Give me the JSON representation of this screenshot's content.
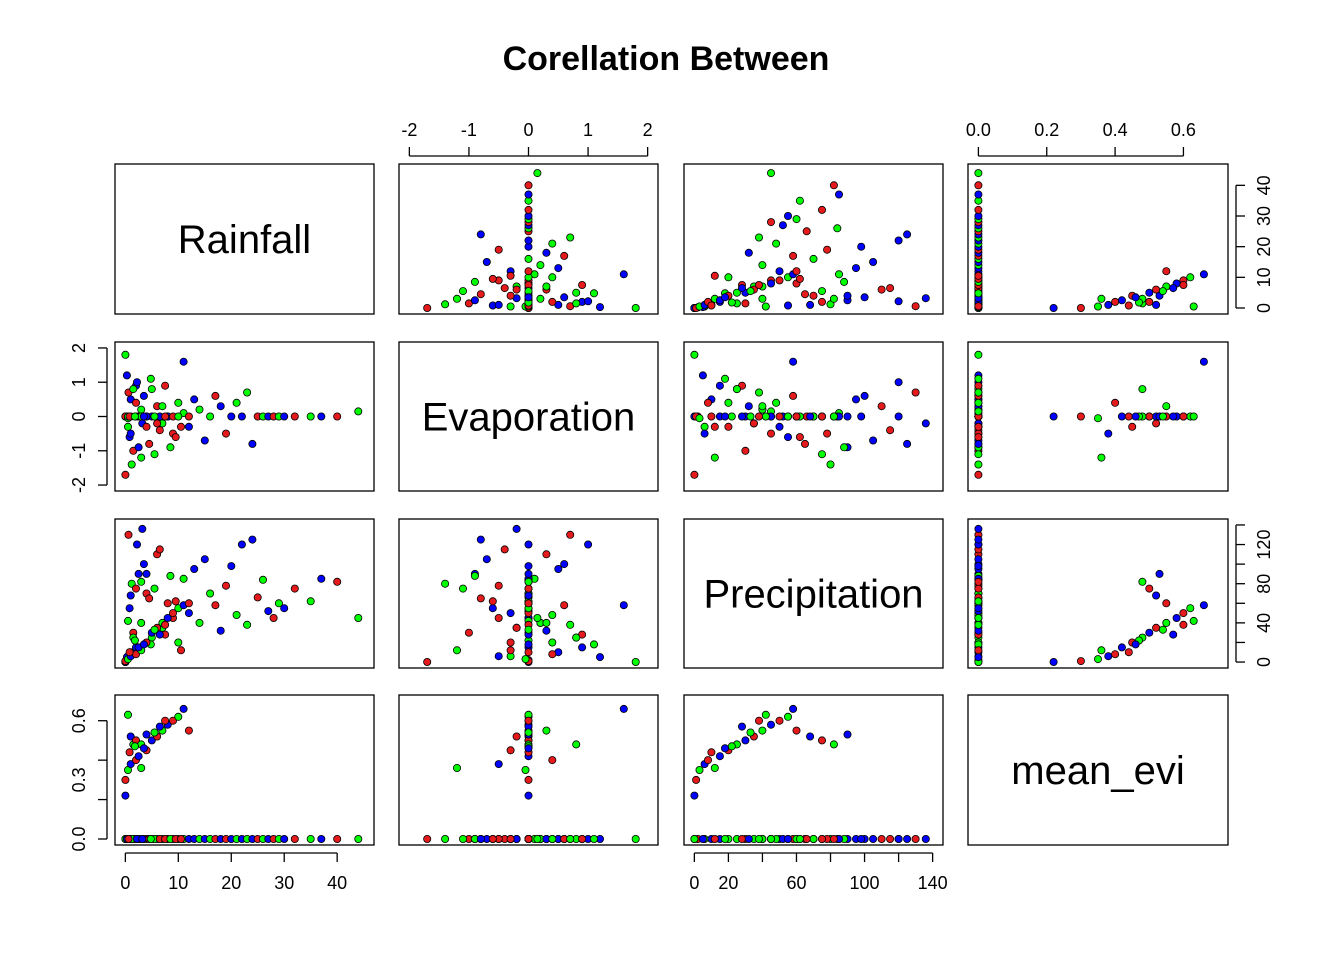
{
  "chart_data": {
    "type": "scatter",
    "title": "Corellation Between",
    "variables": [
      {
        "name": "Rainfall",
        "range": [
          0,
          45
        ],
        "ticks": [
          0,
          10,
          20,
          30,
          40
        ]
      },
      {
        "name": "Evaporation",
        "range": [
          -2,
          2
        ],
        "ticks": [
          -2,
          -1,
          0,
          1,
          2
        ]
      },
      {
        "name": "Precipitation",
        "range": [
          0,
          140
        ],
        "ticks": [
          0,
          20,
          40,
          60,
          80,
          100,
          120,
          140
        ]
      },
      {
        "name": "mean_evi",
        "range": [
          0,
          0.7
        ],
        "ticks": [
          0.0,
          0.2,
          0.4,
          0.6
        ]
      }
    ],
    "tick_labels": {
      "bottom": {
        "Rainfall": [
          "0",
          "10",
          "20",
          "30",
          "40"
        ],
        "Precipitation": [
          "0",
          "20",
          "60",
          "100",
          "140"
        ]
      },
      "top": {
        "Evaporation": [
          "-2",
          "-1",
          "0",
          "1",
          "2"
        ],
        "mean_evi": [
          "0.0",
          "0.2",
          "0.4",
          "0.6"
        ]
      },
      "left": {
        "Evaporation": [
          "-2",
          "-1",
          "0",
          "1",
          "2"
        ],
        "mean_evi": [
          "0.0",
          "0.3",
          "0.6"
        ]
      },
      "right": {
        "Rainfall": [
          "0",
          "10",
          "20",
          "30",
          "40"
        ],
        "Precipitation": [
          "0",
          "40",
          "80",
          "120"
        ]
      }
    },
    "point_colors": [
      "#e41a1c",
      "#00ff00",
      "#0000ff"
    ],
    "grid": false,
    "legend": "none",
    "points": [
      [
        0.2,
        0.0,
        2.0,
        0.0
      ],
      [
        0.5,
        -0.3,
        6.0,
        0.0
      ],
      [
        1.0,
        0.5,
        10.0,
        0.0
      ],
      [
        0.0,
        -1.7,
        0.0,
        0.0
      ],
      [
        0.0,
        1.8,
        0.0,
        0.0
      ],
      [
        2.0,
        0.9,
        15.0,
        0.0
      ],
      [
        1.5,
        -1.0,
        30.0,
        0.0
      ],
      [
        3.0,
        0.2,
        40.0,
        0.0
      ],
      [
        0.8,
        -0.6,
        55.0,
        0.0
      ],
      [
        4.0,
        0.0,
        70.0,
        0.0
      ],
      [
        5.0,
        0.8,
        25.0,
        0.0
      ],
      [
        2.5,
        -0.9,
        90.0,
        0.0
      ],
      [
        6.0,
        0.3,
        110.0,
        0.0
      ],
      [
        7.0,
        -0.2,
        35.0,
        0.0
      ],
      [
        0.3,
        1.2,
        5.0,
        0.0
      ],
      [
        8.0,
        0.0,
        60.0,
        0.0
      ],
      [
        1.2,
        -1.4,
        80.0,
        0.0
      ],
      [
        3.5,
        0.6,
        100.0,
        0.0
      ],
      [
        9.0,
        -0.5,
        45.0,
        0.0
      ],
      [
        10.0,
        0.4,
        20.0,
        0.0
      ],
      [
        2.2,
        1.0,
        120.0,
        0.0
      ],
      [
        4.5,
        -0.8,
        65.0,
        0.0
      ],
      [
        11.0,
        0.1,
        85.0,
        0.0
      ],
      [
        12.0,
        -0.3,
        50.0,
        0.0
      ],
      [
        0.6,
        0.7,
        130.0,
        0.0
      ],
      [
        5.5,
        -1.1,
        75.0,
        0.0
      ],
      [
        13.0,
        0.5,
        95.0,
        0.0
      ],
      [
        6.5,
        -0.4,
        115.0,
        0.0
      ],
      [
        14.0,
        0.2,
        40.0,
        0.0
      ],
      [
        15.0,
        -0.7,
        105.0,
        0.0
      ],
      [
        7.5,
        0.9,
        28.0,
        0.0
      ],
      [
        16.0,
        0.0,
        70.0,
        0.0
      ],
      [
        3.2,
        -0.2,
        136.0,
        0.0
      ],
      [
        17.0,
        0.6,
        58.0,
        0.0
      ],
      [
        8.5,
        -0.9,
        88.0,
        0.0
      ],
      [
        18.0,
        0.3,
        32.0,
        0.0
      ],
      [
        19.0,
        -0.5,
        78.0,
        0.0
      ],
      [
        4.8,
        1.1,
        18.0,
        0.0
      ],
      [
        20.0,
        0.0,
        98.0,
        0.0
      ],
      [
        9.5,
        -0.6,
        62.0,
        0.0
      ],
      [
        21.0,
        0.4,
        48.0,
        0.0
      ],
      [
        22.0,
        0.0,
        120.0,
        0.0
      ],
      [
        10.5,
        -0.3,
        12.0,
        0.0
      ],
      [
        23.0,
        0.7,
        38.0,
        0.0
      ],
      [
        24.0,
        -0.8,
        125.0,
        0.0
      ],
      [
        25.0,
        0.0,
        66.0,
        0.0
      ],
      [
        26.0,
        0.0,
        84.0,
        0.0
      ],
      [
        27.0,
        0.0,
        52.0,
        0.0
      ],
      [
        28.0,
        0.0,
        45.0,
        0.0
      ],
      [
        29.0,
        0.0,
        60.0,
        0.0
      ],
      [
        30.0,
        0.0,
        55.0,
        0.0
      ],
      [
        32.0,
        0.0,
        75.0,
        0.0
      ],
      [
        35.0,
        0.0,
        62.0,
        0.0
      ],
      [
        37.0,
        0.0,
        85.0,
        0.0
      ],
      [
        40.0,
        0.0,
        82.0,
        0.0
      ],
      [
        44.0,
        0.15,
        45.0,
        0.0
      ],
      [
        0.0,
        0.0,
        0.0,
        0.22
      ],
      [
        0.0,
        0.0,
        1.0,
        0.3
      ],
      [
        0.5,
        -0.05,
        3.0,
        0.35
      ],
      [
        1.0,
        -0.5,
        6.0,
        0.38
      ],
      [
        2.0,
        0.4,
        8.0,
        0.4
      ],
      [
        3.0,
        -1.2,
        12.0,
        0.36
      ],
      [
        2.5,
        0.0,
        15.0,
        0.42
      ],
      [
        4.0,
        -0.3,
        20.0,
        0.45
      ],
      [
        1.5,
        0.8,
        25.0,
        0.48
      ],
      [
        5.0,
        0.0,
        30.0,
        0.5
      ],
      [
        6.0,
        -0.2,
        35.0,
        0.52
      ],
      [
        7.0,
        0.3,
        40.0,
        0.55
      ],
      [
        8.0,
        0.0,
        45.0,
        0.58
      ],
      [
        9.0,
        0.0,
        50.0,
        0.6
      ],
      [
        10.0,
        0.0,
        55.0,
        0.62
      ],
      [
        11.0,
        1.6,
        58.0,
        0.66
      ],
      [
        12.0,
        0.0,
        60.0,
        0.55
      ],
      [
        0.5,
        0.0,
        42.0,
        0.63
      ],
      [
        1.0,
        0.0,
        68.0,
        0.52
      ],
      [
        2.0,
        0.0,
        75.0,
        0.5
      ],
      [
        3.0,
        0.0,
        82.0,
        0.48
      ],
      [
        4.0,
        0.0,
        90.0,
        0.53
      ],
      [
        0.8,
        0.0,
        10.0,
        0.44
      ],
      [
        1.8,
        0.0,
        22.0,
        0.47
      ],
      [
        6.5,
        0.0,
        28.0,
        0.57
      ],
      [
        7.5,
        0.0,
        38.0,
        0.6
      ],
      [
        5.5,
        0.0,
        33.0,
        0.54
      ],
      [
        3.5,
        0.0,
        18.0,
        0.46
      ]
    ]
  }
}
